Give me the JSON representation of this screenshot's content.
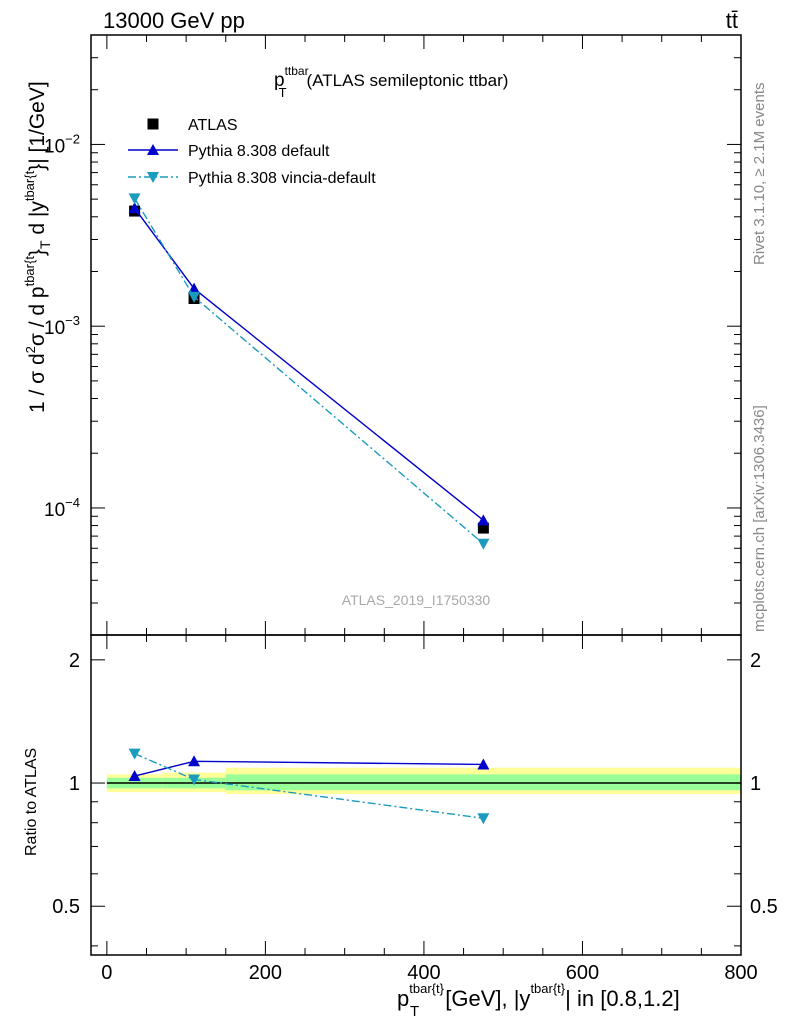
{
  "header": {
    "energy": "13000 GeV pp",
    "process": "tt̄"
  },
  "side_labels": {
    "rivet": "Rivet 3.1.10, ≥ 2.1M events",
    "mcplots": "mcplots.cern.ch [arXiv:1306.3436]"
  },
  "watermark": "ATLAS_2019_I1750330",
  "main_title": {
    "p": "p",
    "sup": "ttbar",
    "sub": "T",
    "rest": "(ATLAS semileptonic ttbar)"
  },
  "y_axis_label": {
    "part1": "1 / σ d",
    "sup2": "2",
    "part2": "σ / d p",
    "sup_tbar": "tbar{t",
    "part3": "}",
    "sub_T": "T",
    "part4": " d |y",
    "sup_tbar2": "tbar{t",
    "part5": "}| [1/GeV]"
  },
  "x_axis_label": {
    "p": "p",
    "sup": "tbar{t}",
    "sub": "T",
    "rest1": " [GeV], |y",
    "sup2": "tbar{t}",
    "rest2": "| in [0.8,1.2]"
  },
  "ratio_ylabel": "Ratio to ATLAS",
  "legend": [
    {
      "name": "ATLAS",
      "color": "#000000",
      "marker": "square"
    },
    {
      "name": "Pythia 8.308 default",
      "color": "#0000cc",
      "marker": "triangle-up"
    },
    {
      "name": "Pythia 8.308 vincia-default",
      "color": "#1b9bbe",
      "marker": "triangle-down"
    }
  ],
  "chart_data": {
    "type": "line",
    "xlim": [
      -20,
      800
    ],
    "main_ylim": [
      2e-05,
      0.04
    ],
    "main_yscale": "log",
    "ratio_ylim": [
      0.38,
      2.3
    ],
    "x_ticks": [
      0,
      200,
      400,
      600,
      800
    ],
    "x_tick_labels": [
      "0",
      "200",
      "400",
      "600",
      "800"
    ],
    "main_y_ticks": [
      0.0001,
      0.001,
      0.01
    ],
    "main_y_tick_labels": [
      {
        "base": "10",
        "exp": "−4"
      },
      {
        "base": "10",
        "exp": "−3"
      },
      {
        "base": "10",
        "exp": "−2"
      }
    ],
    "ratio_y_ticks": [
      0.5,
      1,
      2
    ],
    "ratio_y_tick_labels": [
      "0.5",
      "1",
      "2"
    ],
    "x": [
      35,
      110,
      475
    ],
    "series": [
      {
        "name": "ATLAS",
        "values": [
          0.0043,
          0.00142,
          7.75e-05
        ],
        "ratio": [
          1.0,
          1.0,
          1.0
        ]
      },
      {
        "name": "Pythia 8.308 default",
        "values": [
          0.00446,
          0.00161,
          8.55e-05
        ],
        "ratio": [
          1.04,
          1.13,
          1.11
        ]
      },
      {
        "name": "Pythia 8.308 vincia-default",
        "values": [
          0.00505,
          0.00145,
          6.35e-05
        ],
        "ratio": [
          1.18,
          1.02,
          0.82
        ]
      }
    ],
    "ratio_bands": {
      "bins": [
        [
          0,
          70
        ],
        [
          70,
          150
        ],
        [
          150,
          800
        ]
      ],
      "inner": [
        [
          0.97,
          1.03
        ],
        [
          0.97,
          1.03
        ],
        [
          0.96,
          1.05
        ]
      ],
      "outer": [
        [
          0.95,
          1.05
        ],
        [
          0.95,
          1.06
        ],
        [
          0.94,
          1.09
        ]
      ]
    }
  }
}
